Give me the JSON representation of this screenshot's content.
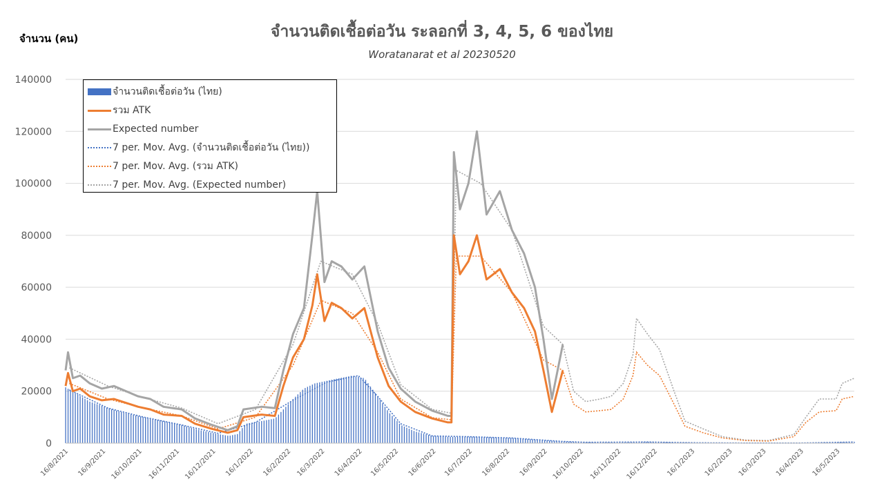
{
  "chart_data": {
    "type": "bar",
    "title": "จำนวนติดเชื้อต่อวัน ระลอกที่ 3, 4, 5, 6 ของไทย",
    "subtitle": "Woratanarat et al 20230520",
    "ylabel": "จำนวน (คน)",
    "xlabel": "",
    "ylim": [
      0,
      140000
    ],
    "yticks": [
      0,
      20000,
      40000,
      60000,
      80000,
      100000,
      120000,
      140000
    ],
    "xlim": [
      "2021-08-16",
      "2023-05-30"
    ],
    "x_tick_labels": [
      "16/8/2021",
      "16/9/2021",
      "16/10/2021",
      "16/11/2021",
      "16/12/2021",
      "16/1/2022",
      "16/2/2022",
      "16/3/2022",
      "16/4/2022",
      "16/5/2022",
      "16/6/2022",
      "16/7/2022",
      "16/8/2022",
      "16/9/2022",
      "16/10/2022",
      "16/11/2022",
      "16/12/2022",
      "16/1/2023",
      "16/2/2023",
      "16/3/2023",
      "16/4/2023",
      "16/5/2023"
    ],
    "grid": true,
    "legend_position": "top-left",
    "series": [
      {
        "name": "จำนวนติดเชื้อต่อวัน (ไทย)",
        "kind": "bar",
        "color": "#4472c4",
        "points": [
          [
            "2021-08-16",
            21500
          ],
          [
            "2021-08-25",
            19000
          ],
          [
            "2021-09-05",
            16000
          ],
          [
            "2021-09-20",
            13500
          ],
          [
            "2021-10-05",
            11500
          ],
          [
            "2021-10-20",
            10000
          ],
          [
            "2021-11-05",
            8500
          ],
          [
            "2021-11-20",
            7000
          ],
          [
            "2021-12-05",
            5000
          ],
          [
            "2021-12-20",
            3500
          ],
          [
            "2021-12-29",
            2800
          ],
          [
            "2022-01-05",
            3500
          ],
          [
            "2022-01-12",
            7500
          ],
          [
            "2022-01-25",
            8500
          ],
          [
            "2022-02-05",
            9500
          ],
          [
            "2022-02-12",
            13000
          ],
          [
            "2022-02-20",
            17000
          ],
          [
            "2022-03-01",
            21000
          ],
          [
            "2022-03-10",
            23000
          ],
          [
            "2022-03-25",
            24500
          ],
          [
            "2022-04-10",
            26000
          ],
          [
            "2022-04-20",
            25000
          ],
          [
            "2022-05-01",
            18000
          ],
          [
            "2022-05-10",
            12000
          ],
          [
            "2022-05-20",
            7000
          ],
          [
            "2022-06-01",
            4500
          ],
          [
            "2022-06-15",
            2800
          ],
          [
            "2022-07-01",
            2400
          ],
          [
            "2022-07-15",
            2500
          ],
          [
            "2022-08-01",
            2300
          ],
          [
            "2022-08-20",
            2000
          ],
          [
            "2022-09-10",
            1300
          ],
          [
            "2022-09-30",
            700
          ],
          [
            "2022-10-20",
            350
          ],
          [
            "2022-11-15",
            250
          ],
          [
            "2022-12-10",
            500
          ],
          [
            "2022-12-25",
            350
          ],
          [
            "2023-01-20",
            150
          ],
          [
            "2023-03-01",
            60
          ],
          [
            "2023-04-15",
            40
          ],
          [
            "2023-05-30",
            450
          ]
        ]
      },
      {
        "name": "รวม ATK",
        "kind": "line",
        "color": "#ed7d31",
        "points": [
          [
            "2021-08-16",
            22000
          ],
          [
            "2021-08-18",
            27000
          ],
          [
            "2021-08-22",
            20000
          ],
          [
            "2021-08-28",
            21000
          ],
          [
            "2021-09-05",
            18000
          ],
          [
            "2021-09-15",
            16500
          ],
          [
            "2021-09-25",
            17000
          ],
          [
            "2021-10-05",
            15500
          ],
          [
            "2021-10-15",
            14000
          ],
          [
            "2021-10-25",
            13000
          ],
          [
            "2021-11-05",
            11000
          ],
          [
            "2021-11-20",
            10500
          ],
          [
            "2021-12-01",
            7500
          ],
          [
            "2021-12-15",
            5500
          ],
          [
            "2021-12-28",
            4000
          ],
          [
            "2022-01-05",
            5000
          ],
          [
            "2022-01-10",
            10000
          ],
          [
            "2022-01-25",
            11000
          ],
          [
            "2022-02-05",
            10500
          ],
          [
            "2022-02-12",
            22000
          ],
          [
            "2022-02-20",
            33000
          ],
          [
            "2022-03-01",
            40000
          ],
          [
            "2022-03-08",
            53000
          ],
          [
            "2022-03-12",
            65000
          ],
          [
            "2022-03-18",
            47000
          ],
          [
            "2022-03-24",
            54000
          ],
          [
            "2022-04-01",
            52000
          ],
          [
            "2022-04-10",
            48000
          ],
          [
            "2022-04-20",
            52000
          ],
          [
            "2022-05-01",
            33000
          ],
          [
            "2022-05-10",
            22000
          ],
          [
            "2022-05-20",
            16000
          ],
          [
            "2022-06-01",
            12000
          ],
          [
            "2022-06-15",
            9500
          ],
          [
            "2022-06-28",
            8000
          ],
          [
            "2022-07-01",
            8000
          ],
          [
            "2022-07-03",
            80000
          ],
          [
            "2022-07-08",
            65000
          ],
          [
            "2022-07-15",
            70000
          ],
          [
            "2022-07-22",
            80000
          ],
          [
            "2022-07-30",
            63000
          ],
          [
            "2022-08-10",
            67000
          ],
          [
            "2022-08-20",
            58000
          ],
          [
            "2022-08-30",
            52000
          ],
          [
            "2022-09-08",
            43000
          ],
          [
            "2022-09-15",
            28000
          ],
          [
            "2022-09-22",
            12000
          ],
          [
            "2022-10-01",
            28000
          ]
        ]
      },
      {
        "name": "Expected number",
        "kind": "line",
        "color": "#a5a5a5",
        "points": [
          [
            "2021-08-16",
            28000
          ],
          [
            "2021-08-18",
            35000
          ],
          [
            "2021-08-22",
            25000
          ],
          [
            "2021-08-28",
            26000
          ],
          [
            "2021-09-05",
            23000
          ],
          [
            "2021-09-15",
            21000
          ],
          [
            "2021-09-25",
            22000
          ],
          [
            "2021-10-05",
            20000
          ],
          [
            "2021-10-15",
            18000
          ],
          [
            "2021-10-25",
            17000
          ],
          [
            "2021-11-05",
            14000
          ],
          [
            "2021-11-20",
            13000
          ],
          [
            "2021-12-01",
            9500
          ],
          [
            "2021-12-15",
            7000
          ],
          [
            "2021-12-28",
            5000
          ],
          [
            "2022-01-05",
            6500
          ],
          [
            "2022-01-10",
            13000
          ],
          [
            "2022-01-25",
            14000
          ],
          [
            "2022-02-05",
            13500
          ],
          [
            "2022-02-12",
            28000
          ],
          [
            "2022-02-20",
            42000
          ],
          [
            "2022-03-01",
            52000
          ],
          [
            "2022-03-08",
            80000
          ],
          [
            "2022-03-12",
            97000
          ],
          [
            "2022-03-18",
            62000
          ],
          [
            "2022-03-24",
            70000
          ],
          [
            "2022-04-01",
            68000
          ],
          [
            "2022-04-10",
            63000
          ],
          [
            "2022-04-20",
            68000
          ],
          [
            "2022-05-01",
            43000
          ],
          [
            "2022-05-10",
            29000
          ],
          [
            "2022-05-20",
            21000
          ],
          [
            "2022-06-01",
            16000
          ],
          [
            "2022-06-15",
            12500
          ],
          [
            "2022-06-28",
            10500
          ],
          [
            "2022-07-01",
            10500
          ],
          [
            "2022-07-03",
            112000
          ],
          [
            "2022-07-08",
            90000
          ],
          [
            "2022-07-15",
            100000
          ],
          [
            "2022-07-22",
            120000
          ],
          [
            "2022-07-30",
            88000
          ],
          [
            "2022-08-10",
            97000
          ],
          [
            "2022-08-20",
            82000
          ],
          [
            "2022-08-30",
            73000
          ],
          [
            "2022-09-08",
            60000
          ],
          [
            "2022-09-15",
            40000
          ],
          [
            "2022-09-22",
            17000
          ],
          [
            "2022-10-01",
            38000
          ]
        ]
      },
      {
        "name": "7 per. Mov. Avg. (จำนวนติดเชื้อต่อวัน (ไทย))",
        "kind": "dotted",
        "color": "#4472c4",
        "points": [
          [
            "2021-08-19",
            20500
          ],
          [
            "2021-09-20",
            13500
          ],
          [
            "2021-10-20",
            10000
          ],
          [
            "2021-11-20",
            7000
          ],
          [
            "2021-12-20",
            3800
          ],
          [
            "2022-01-20",
            8000
          ],
          [
            "2022-02-20",
            16500
          ],
          [
            "2022-03-20",
            23500
          ],
          [
            "2022-04-15",
            26000
          ],
          [
            "2022-05-01",
            18000
          ],
          [
            "2022-05-20",
            7500
          ],
          [
            "2022-06-15",
            2800
          ],
          [
            "2022-07-15",
            2500
          ],
          [
            "2022-08-20",
            2000
          ],
          [
            "2022-09-30",
            700
          ],
          [
            "2022-10-20",
            350
          ],
          [
            "2022-12-10",
            450
          ],
          [
            "2023-01-20",
            150
          ],
          [
            "2023-03-01",
            60
          ],
          [
            "2023-04-15",
            40
          ],
          [
            "2023-05-30",
            450
          ]
        ]
      },
      {
        "name": "7 per. Mov. Avg. (รวม ATK)",
        "kind": "dotted",
        "color": "#ed7d31",
        "points": [
          [
            "2021-08-19",
            23000
          ],
          [
            "2021-09-20",
            17000
          ],
          [
            "2021-10-20",
            13500
          ],
          [
            "2021-11-20",
            10500
          ],
          [
            "2021-12-20",
            5500
          ],
          [
            "2022-01-20",
            10000
          ],
          [
            "2022-02-20",
            30000
          ],
          [
            "2022-03-15",
            55000
          ],
          [
            "2022-04-10",
            50000
          ],
          [
            "2022-05-01",
            35000
          ],
          [
            "2022-05-20",
            17000
          ],
          [
            "2022-06-15",
            9800
          ],
          [
            "2022-07-01",
            9000
          ],
          [
            "2022-07-05",
            72000
          ],
          [
            "2022-07-25",
            72000
          ],
          [
            "2022-08-20",
            58000
          ],
          [
            "2022-09-15",
            32000
          ],
          [
            "2022-10-01",
            28000
          ],
          [
            "2022-10-10",
            15000
          ],
          [
            "2022-10-20",
            12000
          ],
          [
            "2022-11-01",
            12500
          ],
          [
            "2022-11-10",
            13000
          ],
          [
            "2022-11-20",
            17000
          ],
          [
            "2022-11-28",
            26000
          ],
          [
            "2022-12-01",
            35000
          ],
          [
            "2022-12-10",
            30000
          ],
          [
            "2022-12-20",
            26000
          ],
          [
            "2023-01-01",
            15000
          ],
          [
            "2023-01-10",
            6500
          ],
          [
            "2023-01-25",
            4000
          ],
          [
            "2023-02-10",
            2000
          ],
          [
            "2023-03-01",
            1000
          ],
          [
            "2023-03-20",
            800
          ],
          [
            "2023-04-10",
            2500
          ],
          [
            "2023-04-20",
            8000
          ],
          [
            "2023-05-01",
            12000
          ],
          [
            "2023-05-15",
            12500
          ],
          [
            "2023-05-20",
            17000
          ],
          [
            "2023-05-30",
            18000
          ]
        ]
      },
      {
        "name": "7 per. Mov. Avg. (Expected number)",
        "kind": "dotted",
        "color": "#a5a5a5",
        "points": [
          [
            "2021-08-19",
            29000
          ],
          [
            "2021-09-20",
            22000
          ],
          [
            "2021-10-20",
            17500
          ],
          [
            "2021-11-20",
            13500
          ],
          [
            "2021-12-20",
            7500
          ],
          [
            "2022-01-20",
            13000
          ],
          [
            "2022-02-20",
            38000
          ],
          [
            "2022-03-15",
            70000
          ],
          [
            "2022-04-10",
            65000
          ],
          [
            "2022-05-01",
            46000
          ],
          [
            "2022-05-20",
            22500
          ],
          [
            "2022-06-15",
            13000
          ],
          [
            "2022-07-01",
            11500
          ],
          [
            "2022-07-05",
            105000
          ],
          [
            "2022-07-25",
            100000
          ],
          [
            "2022-08-20",
            82000
          ],
          [
            "2022-09-15",
            45000
          ],
          [
            "2022-10-01",
            38000
          ],
          [
            "2022-10-10",
            20000
          ],
          [
            "2022-10-20",
            16000
          ],
          [
            "2022-11-01",
            17000
          ],
          [
            "2022-11-10",
            18000
          ],
          [
            "2022-11-20",
            23000
          ],
          [
            "2022-11-28",
            34000
          ],
          [
            "2022-12-01",
            48000
          ],
          [
            "2022-12-10",
            42000
          ],
          [
            "2022-12-20",
            36000
          ],
          [
            "2023-01-01",
            20000
          ],
          [
            "2023-01-10",
            8500
          ],
          [
            "2023-01-25",
            5500
          ],
          [
            "2023-02-10",
            2500
          ],
          [
            "2023-03-01",
            1200
          ],
          [
            "2023-03-20",
            1000
          ],
          [
            "2023-04-10",
            3300
          ],
          [
            "2023-04-20",
            10000
          ],
          [
            "2023-05-01",
            17000
          ],
          [
            "2023-05-15",
            17000
          ],
          [
            "2023-05-20",
            23000
          ],
          [
            "2023-05-30",
            25000
          ]
        ]
      }
    ]
  }
}
